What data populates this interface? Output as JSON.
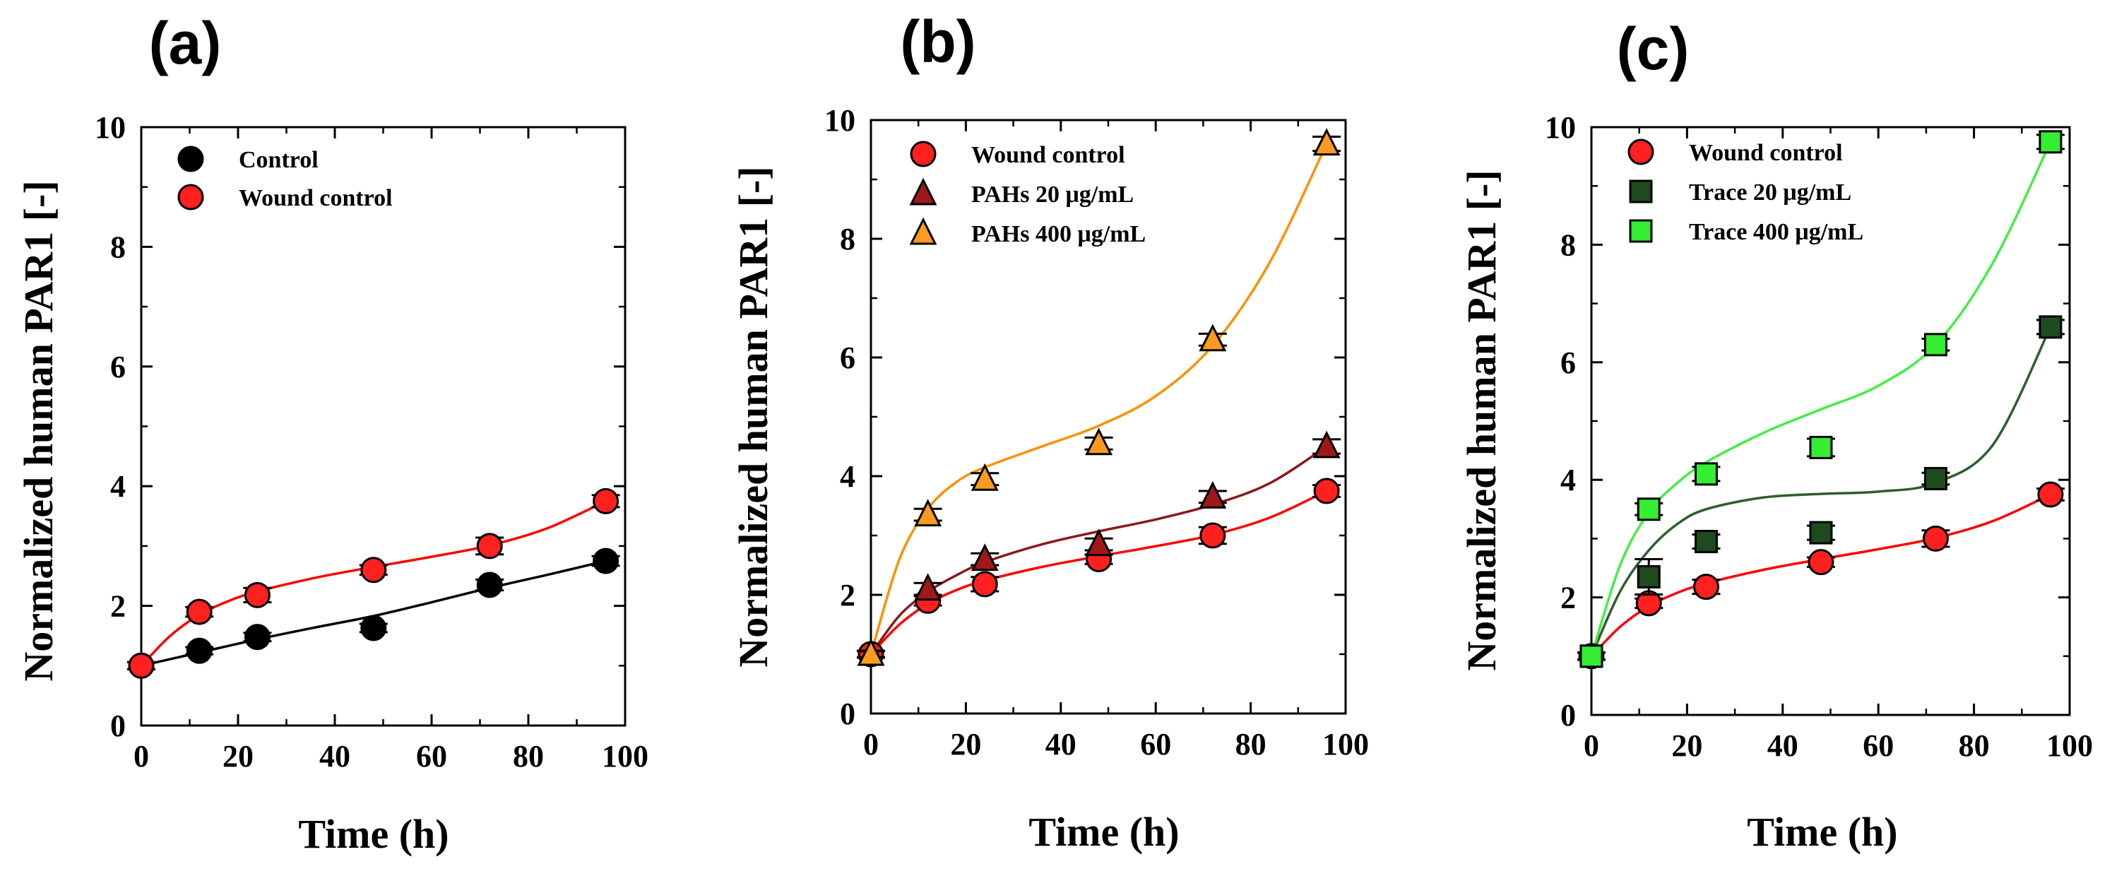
{
  "figure": {
    "background": "#ffffff"
  },
  "chart_data": [
    {
      "type": "line",
      "panel_label": "(a)",
      "title": "",
      "xlabel": "Time (h)",
      "ylabel": "Normalized human PAR1 [-]",
      "xlim": [
        0,
        100
      ],
      "ylim": [
        0,
        10
      ],
      "xticks": [
        "0",
        "20",
        "40",
        "60",
        "80",
        "100"
      ],
      "yticks": [
        "0",
        "2",
        "4",
        "6",
        "8",
        "10"
      ],
      "grid": false,
      "legend_position": "top-left",
      "series": [
        {
          "name": "Control",
          "marker": "circle",
          "color": "#000000",
          "line_color": "#000000",
          "x": [
            0,
            12,
            24,
            48,
            72,
            96
          ],
          "y": [
            1.0,
            1.25,
            1.48,
            1.63,
            2.35,
            2.75
          ],
          "err": [
            0.06,
            0.06,
            0.07,
            0.07,
            0.09,
            0.08
          ],
          "fit": [
            [
              0,
              1.0
            ],
            [
              12,
              1.22
            ],
            [
              24,
              1.44
            ],
            [
              36,
              1.64
            ],
            [
              48,
              1.83
            ],
            [
              60,
              2.06
            ],
            [
              72,
              2.3
            ],
            [
              84,
              2.52
            ],
            [
              96,
              2.75
            ]
          ]
        },
        {
          "name": "Wound control",
          "marker": "circle",
          "color": "#ff2020",
          "line_color": "#ff0000",
          "x": [
            0,
            12,
            24,
            48,
            72,
            96
          ],
          "y": [
            1.0,
            1.9,
            2.18,
            2.6,
            3.0,
            3.75
          ],
          "err": [
            0.06,
            0.08,
            0.12,
            0.08,
            0.14,
            0.1
          ],
          "fit": [
            [
              0,
              1.0
            ],
            [
              6,
              1.5
            ],
            [
              12,
              1.85
            ],
            [
              18,
              2.08
            ],
            [
              24,
              2.24
            ],
            [
              36,
              2.47
            ],
            [
              48,
              2.65
            ],
            [
              60,
              2.82
            ],
            [
              72,
              3.01
            ],
            [
              84,
              3.3
            ],
            [
              96,
              3.75
            ]
          ]
        }
      ]
    },
    {
      "type": "line",
      "panel_label": "(b)",
      "title": "",
      "xlabel": "Time (h)",
      "ylabel": "Normalized human PAR1 [-]",
      "xlim": [
        0,
        100
      ],
      "ylim": [
        0,
        10
      ],
      "xticks": [
        "0",
        "20",
        "40",
        "60",
        "80",
        "100"
      ],
      "yticks": [
        "0",
        "2",
        "4",
        "6",
        "8",
        "10"
      ],
      "grid": false,
      "legend_position": "top-left",
      "series": [
        {
          "name": "Wound control",
          "marker": "circle",
          "color": "#ff2020",
          "line_color": "#ff0000",
          "x": [
            0,
            12,
            24,
            48,
            72,
            96
          ],
          "y": [
            1.0,
            1.9,
            2.18,
            2.6,
            3.0,
            3.75
          ],
          "err": [
            0.06,
            0.08,
            0.12,
            0.08,
            0.14,
            0.1
          ],
          "fit": [
            [
              0,
              1.0
            ],
            [
              6,
              1.5
            ],
            [
              12,
              1.85
            ],
            [
              18,
              2.08
            ],
            [
              24,
              2.24
            ],
            [
              36,
              2.47
            ],
            [
              48,
              2.65
            ],
            [
              60,
              2.82
            ],
            [
              72,
              3.01
            ],
            [
              84,
              3.3
            ],
            [
              96,
              3.75
            ]
          ]
        },
        {
          "name": "PAHs 20 μg/mL",
          "marker": "triangle",
          "color": "#a01818",
          "line_color": "#8b1a1a",
          "x": [
            0,
            12,
            24,
            48,
            72,
            96
          ],
          "y": [
            1.0,
            2.1,
            2.6,
            2.85,
            3.65,
            4.5
          ],
          "err": [
            0.05,
            0.1,
            0.1,
            0.1,
            0.1,
            0.12
          ],
          "fit": [
            [
              0,
              1.0
            ],
            [
              6,
              1.65
            ],
            [
              12,
              2.05
            ],
            [
              18,
              2.33
            ],
            [
              24,
              2.55
            ],
            [
              36,
              2.85
            ],
            [
              48,
              3.07
            ],
            [
              60,
              3.27
            ],
            [
              72,
              3.52
            ],
            [
              84,
              3.88
            ],
            [
              96,
              4.5
            ]
          ]
        },
        {
          "name": "PAHs 400 μg/mL",
          "marker": "triangle",
          "color": "#ff9a20",
          "line_color": "#ff9000",
          "x": [
            0,
            12,
            24,
            48,
            72,
            96
          ],
          "y": [
            1.0,
            3.35,
            3.95,
            4.55,
            6.3,
            9.6
          ],
          "err": [
            0.06,
            0.1,
            0.1,
            0.1,
            0.1,
            0.12
          ],
          "fit": [
            [
              0,
              1.0
            ],
            [
              6,
              2.6
            ],
            [
              12,
              3.45
            ],
            [
              18,
              3.9
            ],
            [
              24,
              4.15
            ],
            [
              36,
              4.5
            ],
            [
              48,
              4.85
            ],
            [
              60,
              5.35
            ],
            [
              72,
              6.2
            ],
            [
              84,
              7.6
            ],
            [
              96,
              9.6
            ]
          ]
        }
      ]
    },
    {
      "type": "line",
      "panel_label": "(c)",
      "title": "",
      "xlabel": "Time (h)",
      "ylabel": "Normalized human PAR1 [-]",
      "xlim": [
        0,
        100
      ],
      "ylim": [
        0,
        10
      ],
      "xticks": [
        "0",
        "20",
        "40",
        "60",
        "80",
        "100"
      ],
      "yticks": [
        "0",
        "2",
        "4",
        "6",
        "8",
        "10"
      ],
      "grid": false,
      "legend_position": "top-left",
      "series": [
        {
          "name": "Wound control",
          "marker": "circle",
          "color": "#ff2020",
          "line_color": "#ff0000",
          "x": [
            0,
            12,
            24,
            48,
            72,
            96
          ],
          "y": [
            1.0,
            1.9,
            2.18,
            2.6,
            3.0,
            3.75
          ],
          "err": [
            0.06,
            0.08,
            0.12,
            0.08,
            0.14,
            0.1
          ],
          "fit": [
            [
              0,
              1.0
            ],
            [
              6,
              1.5
            ],
            [
              12,
              1.85
            ],
            [
              18,
              2.08
            ],
            [
              24,
              2.24
            ],
            [
              36,
              2.47
            ],
            [
              48,
              2.65
            ],
            [
              60,
              2.82
            ],
            [
              72,
              3.01
            ],
            [
              84,
              3.3
            ],
            [
              96,
              3.75
            ]
          ]
        },
        {
          "name": "Trace 20 μg/mL",
          "marker": "square",
          "color": "#1e4a1e",
          "line_color": "#2e5e2e",
          "x": [
            0,
            12,
            24,
            48,
            72,
            96
          ],
          "y": [
            1.0,
            2.35,
            2.95,
            3.1,
            4.02,
            6.6
          ],
          "err": [
            0.06,
            0.3,
            0.12,
            0.12,
            0.1,
            0.12
          ],
          "fit": [
            [
              0,
              1.0
            ],
            [
              6,
              2.1
            ],
            [
              12,
              2.8
            ],
            [
              18,
              3.25
            ],
            [
              24,
              3.5
            ],
            [
              36,
              3.7
            ],
            [
              48,
              3.76
            ],
            [
              60,
              3.8
            ],
            [
              72,
              3.95
            ],
            [
              84,
              4.6
            ],
            [
              96,
              6.6
            ]
          ]
        },
        {
          "name": "Trace 400 μg/mL",
          "marker": "square",
          "color": "#33ee33",
          "line_color": "#44ee44",
          "x": [
            0,
            12,
            24,
            48,
            72,
            96
          ],
          "y": [
            1.0,
            3.5,
            4.1,
            4.55,
            6.3,
            9.75
          ],
          "err": [
            0.06,
            0.1,
            0.12,
            0.15,
            0.1,
            0.12
          ],
          "fit": [
            [
              0,
              1.0
            ],
            [
              6,
              2.55
            ],
            [
              12,
              3.45
            ],
            [
              18,
              3.95
            ],
            [
              24,
              4.3
            ],
            [
              36,
              4.8
            ],
            [
              48,
              5.2
            ],
            [
              60,
              5.6
            ],
            [
              72,
              6.3
            ],
            [
              84,
              7.7
            ],
            [
              96,
              9.75
            ]
          ]
        }
      ]
    }
  ]
}
